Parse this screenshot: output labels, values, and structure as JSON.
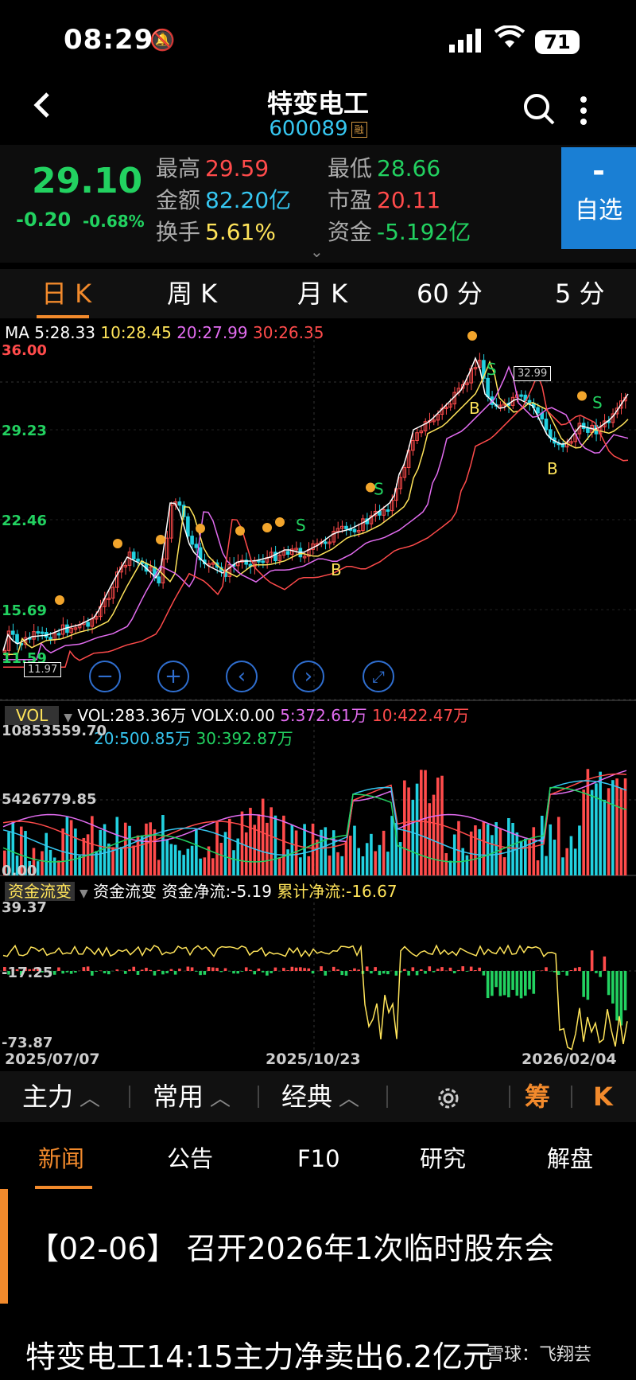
{
  "status_bar": {
    "time": "08:29",
    "battery": "71"
  },
  "header": {
    "name": "特变电工",
    "code": "600089",
    "margin_badge": "融"
  },
  "quote": {
    "price": "29.10",
    "change": "-0.20",
    "change_pct": "-0.68%",
    "fields": [
      {
        "label": "最高",
        "value": "29.59",
        "color": "#ff4b4b"
      },
      {
        "label": "金额",
        "value": "82.20亿",
        "color": "#36c6f0"
      },
      {
        "label": "换手",
        "value": "5.61%",
        "color": "#ffe45a"
      },
      {
        "label": "最低",
        "value": "28.66",
        "color": "#22d160"
      },
      {
        "label": "市盈",
        "value": "20.11",
        "color": "#ff4b4b"
      },
      {
        "label": "资金",
        "value": "-5.192亿",
        "color": "#22d160"
      }
    ],
    "watch_button": {
      "symbol": "-",
      "label": "自选"
    }
  },
  "period_tabs": [
    "日 K",
    "周 K",
    "月 K",
    "60 分",
    "5 分"
  ],
  "chart": {
    "ma_legend": [
      {
        "text": "MA 5:28.33",
        "color": "#ffffff"
      },
      {
        "text": "10:28.45",
        "color": "#ffe45a"
      },
      {
        "text": "20:27.99",
        "color": "#e26cf0"
      },
      {
        "text": "30:26.35",
        "color": "#ff4b4b"
      }
    ],
    "price_axis": [
      "36.00",
      "29.23",
      "22.46",
      "15.69",
      "11.59"
    ],
    "high_tag": "32.99",
    "low_tag": "11.97",
    "signals": {
      "sell": "S",
      "buy": "B"
    },
    "vol_label": "VOL",
    "vol_legend": [
      {
        "text": "VOL:283.36万",
        "color": "#ffffff"
      },
      {
        "text": "VOLX:0.00",
        "color": "#ffffff"
      },
      {
        "text": "5:372.61万",
        "color": "#e26cf0"
      },
      {
        "text": "10:422.47万",
        "color": "#ff4b4b"
      }
    ],
    "vol_legend2": [
      {
        "text": "20:500.85万",
        "color": "#36c6f0"
      },
      {
        "text": "30:392.87万",
        "color": "#22d160"
      }
    ],
    "vol_axis": [
      "10853559.70",
      "5426779.85",
      "0.00"
    ],
    "flow_label": "资金流变",
    "flow_legend": [
      {
        "text": "资金流变",
        "color": "#ffffff"
      },
      {
        "text": "资金净流:-5.19",
        "color": "#ffffff"
      },
      {
        "text": "累计净流:-16.67",
        "color": "#ffe45a"
      }
    ],
    "flow_axis": [
      "39.37",
      "-17.25",
      "-73.87"
    ],
    "date_axis": [
      "2025/07/07",
      "2025/10/23",
      "2026/02/04"
    ]
  },
  "toolbar": {
    "items": [
      "主力",
      "常用",
      "经典"
    ],
    "chip": "筹",
    "kline": "K"
  },
  "news_tabs": [
    "新闻",
    "公告",
    "F10",
    "研究",
    "解盘"
  ],
  "news": [
    "【02-06】 召开2026年1次临时股东会",
    "特变电工14:15主力净卖出6.2亿元"
  ],
  "watermark": "雪球：飞翔芸"
}
